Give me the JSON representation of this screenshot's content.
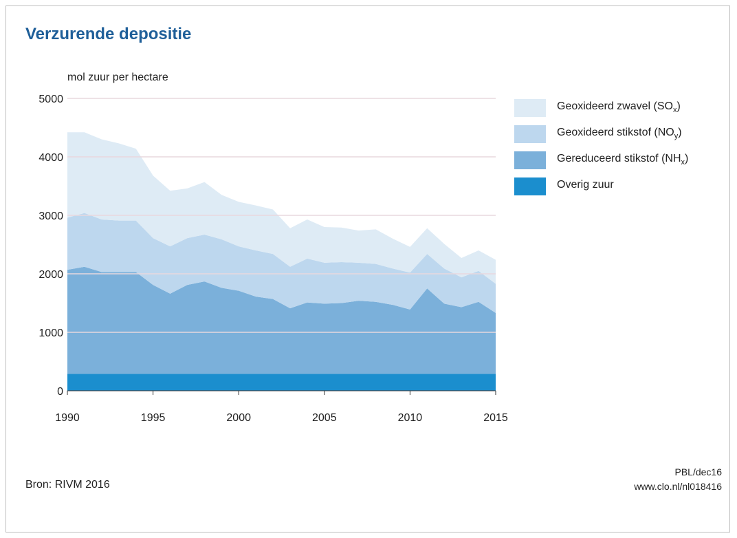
{
  "title": "Verzurende depositie",
  "ylabel": "mol zuur per hectare",
  "source": "Bron: RIVM 2016",
  "credit": "PBL/dec16",
  "url": "www.clo.nl/nl018416",
  "legend": [
    {
      "label": "Geoxideerd zwavel (SO",
      "sub": "x",
      "close": ")",
      "color": "#deebf5"
    },
    {
      "label": "Geoxideerd stikstof (NO",
      "sub": "y",
      "close": ")",
      "color": "#bdd7ee"
    },
    {
      "label": "Gereduceerd stikstof (NH",
      "sub": "x",
      "close": ")",
      "color": "#7bb0da"
    },
    {
      "label": "Overig zuur",
      "sub": "",
      "close": "",
      "color": "#1b8ece"
    }
  ],
  "chart_data": {
    "type": "area",
    "stacked": true,
    "title": "Verzurende depositie",
    "ylabel": "mol zuur per hectare",
    "xlabel": "",
    "ylim": [
      0,
      5000
    ],
    "yticks": [
      0,
      1000,
      2000,
      3000,
      4000,
      5000
    ],
    "xticks": [
      1990,
      1995,
      2000,
      2005,
      2010,
      2015
    ],
    "grid": true,
    "legend_position": "right",
    "x": [
      1990,
      1991,
      1992,
      1993,
      1994,
      1995,
      1996,
      1997,
      1998,
      1999,
      2000,
      2001,
      2002,
      2003,
      2004,
      2005,
      2006,
      2007,
      2008,
      2009,
      2010,
      2011,
      2012,
      2013,
      2014,
      2015
    ],
    "series": [
      {
        "name": "Overig zuur",
        "color": "#1b8ece",
        "values": [
          290,
          290,
          290,
          290,
          290,
          290,
          290,
          290,
          290,
          290,
          290,
          290,
          290,
          290,
          290,
          290,
          290,
          290,
          290,
          290,
          290,
          290,
          290,
          290,
          290,
          290
        ]
      },
      {
        "name": "Gereduceerd stikstof (NHx)",
        "color": "#7bb0da",
        "values": [
          1780,
          1830,
          1740,
          1740,
          1740,
          1520,
          1370,
          1520,
          1580,
          1470,
          1420,
          1320,
          1280,
          1120,
          1220,
          1200,
          1210,
          1250,
          1230,
          1180,
          1100,
          1460,
          1200,
          1140,
          1230,
          1040
        ]
      },
      {
        "name": "Geoxideerd stikstof (NOy)",
        "color": "#bdd7ee",
        "values": [
          890,
          920,
          900,
          880,
          880,
          800,
          810,
          800,
          800,
          830,
          760,
          790,
          770,
          710,
          750,
          700,
          700,
          650,
          650,
          620,
          630,
          590,
          600,
          510,
          530,
          500
        ]
      },
      {
        "name": "Geoxideerd zwavel (SOx)",
        "color": "#deebf5",
        "values": [
          1460,
          1380,
          1370,
          1320,
          1230,
          1070,
          950,
          850,
          900,
          760,
          760,
          770,
          760,
          660,
          670,
          610,
          590,
          550,
          590,
          510,
          440,
          440,
          420,
          330,
          350,
          410
        ]
      }
    ],
    "totals": [
      4420,
      4420,
      4300,
      4230,
      4140,
      3680,
      3420,
      3460,
      3570,
      3350,
      3230,
      3170,
      3100,
      2780,
      2930,
      2800,
      2790,
      2740,
      2760,
      2600,
      2460,
      2780,
      2510,
      2270,
      2400,
      2240
    ]
  }
}
